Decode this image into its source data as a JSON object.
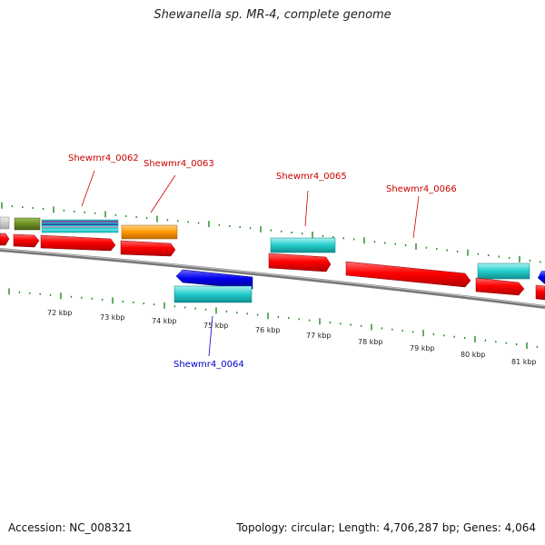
{
  "title": "Shewanella sp. MR-4, complete genome",
  "accession": "Accession: NC_008321",
  "summary": "Topology: circular; Length: 4,706,287 bp; Genes: 4,064",
  "scale_labels": [
    "72 kbp",
    "73 kbp",
    "74 kbp",
    "75 kbp",
    "76 kbp",
    "77 kbp",
    "78 kbp",
    "79 kbp",
    "80 kbp",
    "81 kbp"
  ],
  "gene_labels": [
    {
      "name": "Shewmr4_0062",
      "strand": "forward",
      "color": "#cc0000"
    },
    {
      "name": "Shewmr4_0063",
      "strand": "forward",
      "color": "#cc0000"
    },
    {
      "name": "Shewmr4_0064",
      "strand": "reverse",
      "color": "#0000cc"
    },
    {
      "name": "Shewmr4_0065",
      "strand": "forward",
      "color": "#cc0000"
    },
    {
      "name": "Shewmr4_0066",
      "strand": "forward",
      "color": "#cc0000"
    }
  ],
  "colors": {
    "forward_cds": "#ff0000",
    "reverse_cds": "#0000ee",
    "gene_feature": "#22cccc",
    "orange_feature": "#ff9900",
    "olive_feature": "#6b8e23",
    "grey_feature": "#c8c8c8",
    "backbone": "#808080",
    "ticks": "#228822"
  }
}
